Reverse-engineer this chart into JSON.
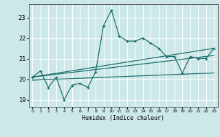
{
  "xlabel": "Humidex (Indice chaleur)",
  "bg_color": "#cce8e8",
  "line_color": "#1a6b6b",
  "grid_color": "#ffffff",
  "xlim": [
    -0.5,
    23.5
  ],
  "ylim": [
    18.65,
    23.65
  ],
  "yticks": [
    19,
    20,
    21,
    22,
    23
  ],
  "xticks": [
    0,
    1,
    2,
    3,
    4,
    5,
    6,
    7,
    8,
    9,
    10,
    11,
    12,
    13,
    14,
    15,
    16,
    17,
    18,
    19,
    20,
    21,
    22,
    23
  ],
  "main_line": [
    [
      0,
      20.1
    ],
    [
      1,
      20.4
    ],
    [
      2,
      19.6
    ],
    [
      3,
      20.1
    ],
    [
      4,
      19.0
    ],
    [
      5,
      19.7
    ],
    [
      6,
      19.8
    ],
    [
      7,
      19.6
    ],
    [
      8,
      20.35
    ],
    [
      9,
      22.6
    ],
    [
      10,
      23.35
    ],
    [
      11,
      22.1
    ],
    [
      12,
      21.85
    ],
    [
      13,
      21.85
    ],
    [
      14,
      22.0
    ],
    [
      15,
      21.75
    ],
    [
      16,
      21.5
    ],
    [
      17,
      21.1
    ],
    [
      18,
      21.1
    ],
    [
      19,
      20.3
    ],
    [
      20,
      21.1
    ],
    [
      21,
      21.0
    ],
    [
      22,
      21.0
    ],
    [
      23,
      21.5
    ]
  ],
  "line2": [
    [
      0,
      20.1
    ],
    [
      23,
      21.5
    ]
  ],
  "line3": [
    [
      0,
      20.1
    ],
    [
      23,
      21.15
    ]
  ],
  "line4": [
    [
      0,
      19.95
    ],
    [
      23,
      20.3
    ]
  ]
}
